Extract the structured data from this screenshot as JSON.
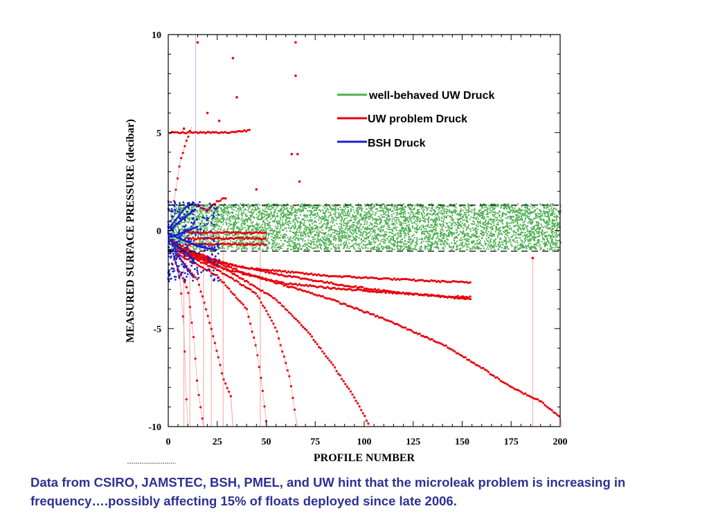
{
  "caption": "Data from CSIRO, JAMSTEC, BSH, PMEL, and UW hint that the microleak problem is increasing in frequency….possibly affecting 15% of floats deployed since late 2006.",
  "chart_data": {
    "type": "scatter",
    "title": "",
    "xlabel": "PROFILE NUMBER",
    "ylabel": "MEASURED SURFACE PRESSURE (decibar)",
    "xlim": [
      0,
      200
    ],
    "ylim": [
      -10,
      10
    ],
    "xticks": [
      "0",
      "25",
      "50",
      "75",
      "100",
      "125",
      "150",
      "175",
      "200"
    ],
    "yticks": [
      "-10",
      "-5",
      "0",
      "5",
      "10"
    ],
    "reference_lines": [
      1.3,
      -1.05
    ],
    "legend": {
      "placement": "top-right"
    },
    "colors": {
      "well_behaved": "#4caf50",
      "problem": "#e8000b",
      "problem_faint": "#f5a0a0",
      "bsh": "#1a22c8",
      "bsh_faint": "#b0b4ff",
      "caption": "#2e3192"
    },
    "series": [
      {
        "name": "well-behaved UW Druck",
        "band": {
          "x": [
            1,
            200
          ],
          "y": [
            -0.95,
            1.4
          ]
        }
      },
      {
        "name": "UW problem Druck",
        "tracks": [
          [
            [
              2,
              -0.5
            ],
            [
              20,
              -1.5
            ],
            [
              40,
              -1.9
            ],
            [
              60,
              -2.1
            ],
            [
              80,
              -2.3
            ],
            [
              100,
              -2.4
            ],
            [
              120,
              -2.5
            ],
            [
              140,
              -2.6
            ],
            [
              155,
              -2.65
            ]
          ],
          [
            [
              2,
              -0.7
            ],
            [
              30,
              -1.7
            ],
            [
              60,
              -2.3
            ],
            [
              90,
              -2.8
            ],
            [
              120,
              -3.2
            ],
            [
              140,
              -3.35
            ],
            [
              155,
              -3.4
            ]
          ],
          [
            [
              3,
              -0.8
            ],
            [
              30,
              -2.0
            ],
            [
              60,
              -2.7
            ],
            [
              90,
              -3.0
            ],
            [
              120,
              -3.2
            ],
            [
              155,
              -3.5
            ]
          ],
          [
            [
              5,
              -0.9
            ],
            [
              40,
              -2.2
            ],
            [
              80,
              -3.4
            ],
            [
              110,
              -4.5
            ],
            [
              140,
              -5.8
            ],
            [
              160,
              -7.0
            ],
            [
              175,
              -8.0
            ],
            [
              190,
              -8.7
            ],
            [
              200,
              -9.5
            ]
          ],
          [
            [
              4,
              -1.0
            ],
            [
              30,
              -2.0
            ],
            [
              55,
              -3.5
            ],
            [
              70,
              -5.0
            ],
            [
              85,
              -7.0
            ],
            [
              95,
              -8.5
            ],
            [
              103,
              -10.0
            ]
          ],
          [
            [
              6,
              -1.1
            ],
            [
              25,
              -2.0
            ],
            [
              45,
              -3.2
            ],
            [
              55,
              -5.0
            ],
            [
              62,
              -7.5
            ],
            [
              65,
              -9.5
            ]
          ],
          [
            [
              5,
              -1.2
            ],
            [
              25,
              -2.3
            ],
            [
              40,
              -4.0
            ],
            [
              45,
              -6.0
            ],
            [
              48,
              -8.0
            ],
            [
              50,
              -9.7
            ]
          ],
          [
            [
              4,
              -1.2
            ],
            [
              15,
              -2.5
            ],
            [
              22,
              -5.0
            ],
            [
              28,
              -7.5
            ],
            [
              32,
              -8.5
            ]
          ],
          [
            [
              3,
              -1.5
            ],
            [
              10,
              -3.0
            ],
            [
              13,
              -5.5
            ],
            [
              15,
              -8.0
            ],
            [
              18,
              -10.0
            ]
          ],
          [
            [
              3,
              -1.3
            ],
            [
              6,
              -2.5
            ],
            [
              8,
              -5.0
            ],
            [
              9,
              -8.0
            ],
            [
              10,
              -10.0
            ]
          ],
          [
            [
              1,
              5.0
            ],
            [
              10,
              5.0
            ],
            [
              20,
              5.0
            ],
            [
              30,
              5.0
            ],
            [
              40,
              5.1
            ],
            [
              42,
              5.15
            ]
          ],
          [
            [
              3,
              1.5
            ],
            [
              6,
              3.5
            ],
            [
              9,
              4.5
            ],
            [
              12,
              5.3
            ]
          ],
          [
            [
              14,
              1.3
            ],
            [
              20,
              1.0
            ],
            [
              25,
              1.5
            ],
            [
              30,
              1.7
            ]
          ],
          [
            [
              10,
              -0.1
            ],
            [
              30,
              -0.1
            ],
            [
              50,
              -0.1
            ]
          ],
          [
            [
              10,
              -0.4
            ],
            [
              30,
              -0.4
            ],
            [
              50,
              -0.4
            ]
          ],
          [
            [
              10,
              -0.7
            ],
            [
              30,
              -0.7
            ],
            [
              50,
              -0.7
            ]
          ]
        ],
        "points": [
          [
            15,
            9.6
          ],
          [
            33,
            8.8
          ],
          [
            65,
            9.6
          ],
          [
            65,
            7.9
          ],
          [
            35,
            6.8
          ],
          [
            20,
            6.0
          ],
          [
            26,
            5.6
          ],
          [
            66,
            3.9
          ],
          [
            63,
            3.9
          ],
          [
            67,
            2.5
          ],
          [
            45,
            2.1
          ],
          [
            186,
            -1.4
          ],
          [
            8,
            5.2
          ]
        ],
        "spikes": [
          [
            8,
            0
          ],
          [
            11,
            0
          ],
          [
            18,
            0
          ],
          [
            22,
            0
          ],
          [
            28,
            0
          ],
          [
            47,
            0
          ],
          [
            186,
            -1.4
          ]
        ]
      },
      {
        "name": "BSH Druck",
        "tracks": [
          [
            [
              1,
              0.2
            ],
            [
              5,
              0.7
            ],
            [
              9,
              1.2
            ],
            [
              13,
              1.4
            ]
          ],
          [
            [
              1,
              0.0
            ],
            [
              5,
              0.4
            ],
            [
              10,
              0.8
            ],
            [
              14,
              1.1
            ]
          ],
          [
            [
              1,
              -0.3
            ],
            [
              5,
              -0.2
            ],
            [
              10,
              0.0
            ],
            [
              15,
              0.2
            ]
          ],
          [
            [
              1,
              -0.5
            ],
            [
              5,
              -0.8
            ],
            [
              10,
              -1.2
            ],
            [
              14,
              -1.7
            ]
          ],
          [
            [
              2,
              -0.6
            ],
            [
              6,
              -1.4
            ],
            [
              10,
              -2.0
            ],
            [
              13,
              -2.4
            ]
          ],
          [
            [
              1,
              -0.2
            ],
            [
              8,
              -0.5
            ],
            [
              15,
              -0.8
            ],
            [
              25,
              -1.0
            ]
          ],
          [
            [
              2,
              -1.0
            ],
            [
              5,
              -2.0
            ],
            [
              6,
              -2.5
            ]
          ]
        ],
        "scatter_box": {
          "x": [
            0,
            26
          ],
          "y": [
            -2.6,
            1.5
          ]
        },
        "spike": [
          14,
          10
        ]
      }
    ]
  }
}
